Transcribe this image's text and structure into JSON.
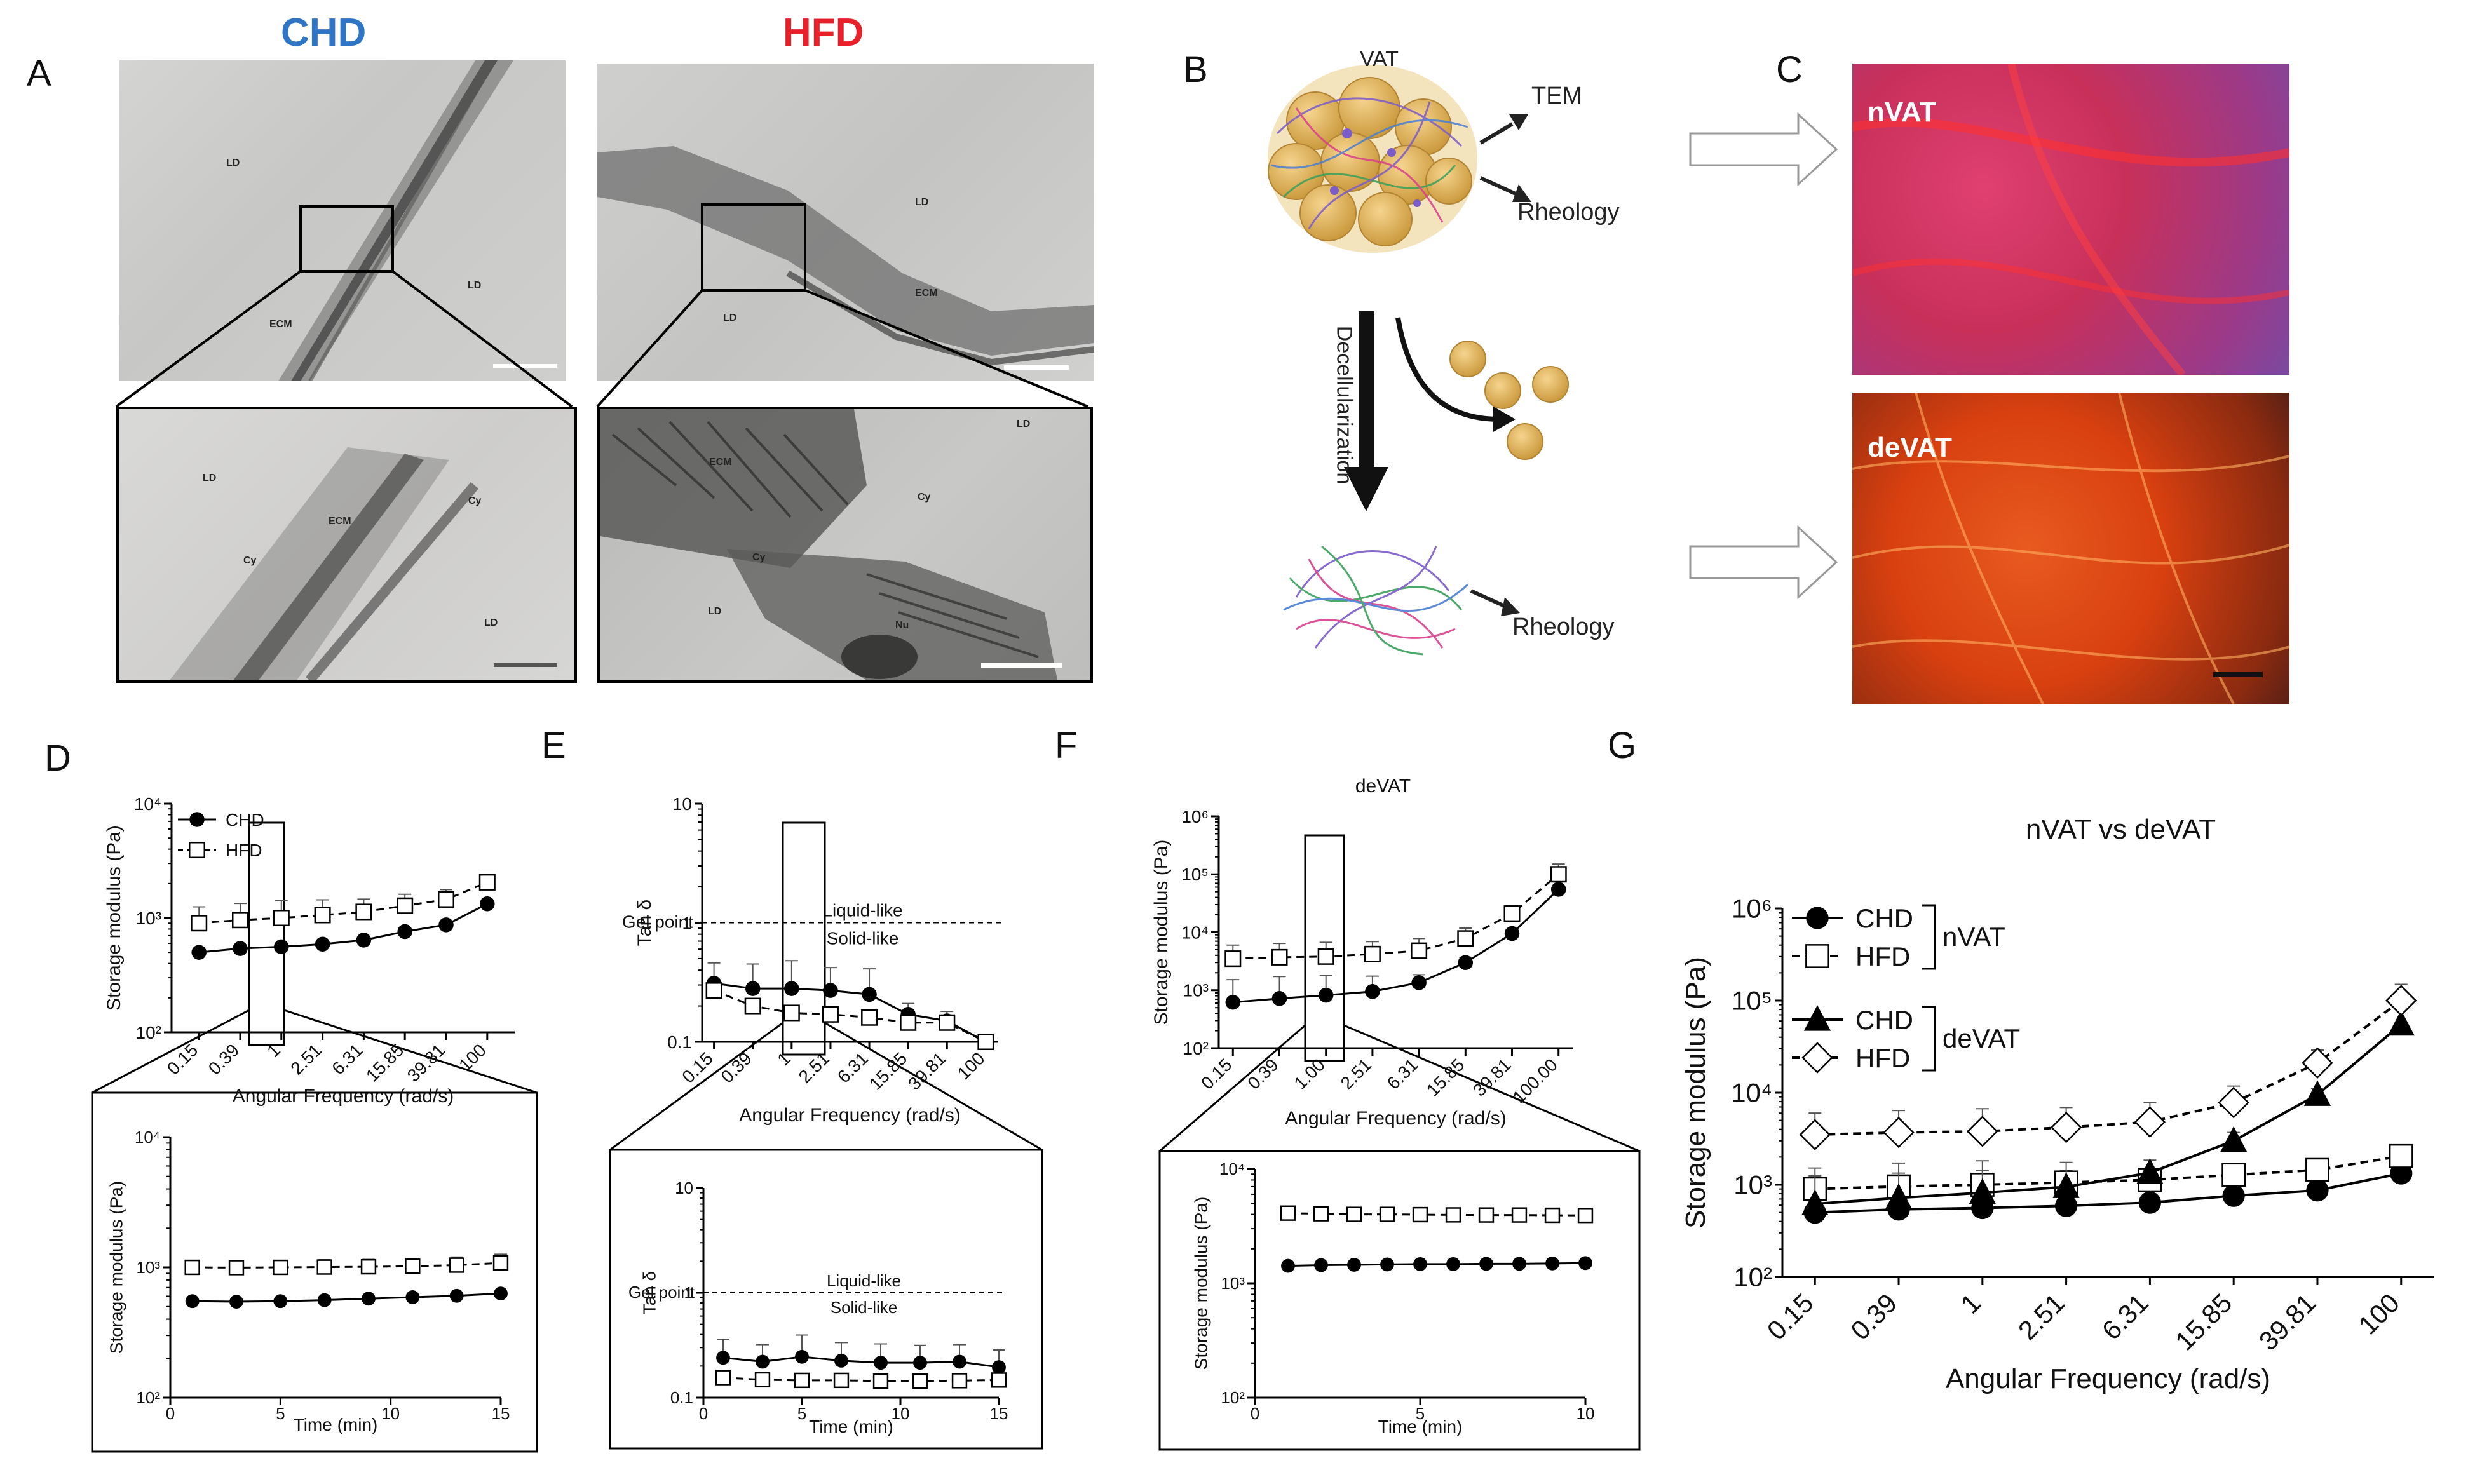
{
  "panels": {
    "A": "A",
    "B": "B",
    "C": "C",
    "D": "D",
    "E": "E",
    "F": "F",
    "G": "G"
  },
  "panel_a": {
    "chd_title": "CHD",
    "hfd_title": "HFD",
    "chd_title_color": "#2e75c6",
    "hfd_title_color": "#e8202a",
    "labels": {
      "ld": "LD",
      "ecm": "ECM",
      "cy": "Cy",
      "nu": "Nu"
    }
  },
  "panel_b": {
    "vat": "VAT",
    "tem": "TEM",
    "rheology_top": "Rheology",
    "decellularization": "Decellularization",
    "rheology_bottom": "Rheology"
  },
  "panel_c": {
    "nvat": "nVAT",
    "devat": "deVAT"
  },
  "chart_data": [
    {
      "id": "D-main",
      "type": "line",
      "title": "",
      "xlabel": "Angular Frequency (rad/s)",
      "ylabel": "Storage modulus (Pa)",
      "categories": [
        "0.15",
        "0.39",
        "1",
        "2.51",
        "6.31",
        "15.85",
        "39.81",
        "100"
      ],
      "y_scale": "log",
      "ylim": [
        100,
        10000
      ],
      "y_ticks": [
        {
          "v": 100,
          "l": "10²"
        },
        {
          "v": 1000,
          "l": "10³"
        },
        {
          "v": 10000,
          "l": "10⁴"
        }
      ],
      "legend": "top-left",
      "series": [
        {
          "name": "CHD",
          "marker": "filled-circle",
          "dash": false,
          "values": [
            500,
            540,
            560,
            590,
            640,
            760,
            870,
            1330
          ],
          "errors": [
            0,
            0,
            0,
            0,
            0,
            0,
            0,
            0
          ]
        },
        {
          "name": "HFD",
          "marker": "open-square",
          "dash": true,
          "values": [
            900,
            960,
            1000,
            1060,
            1130,
            1280,
            1450,
            2050
          ],
          "errors": [
            350,
            380,
            420,
            380,
            330,
            330,
            320,
            220
          ]
        }
      ]
    },
    {
      "id": "D-inset",
      "type": "line",
      "title": "",
      "xlabel": "Time (min)",
      "ylabel": "Storage modulus (Pa)",
      "x": [
        1,
        3,
        5,
        7,
        9,
        11,
        13,
        15
      ],
      "xlim": [
        0,
        15
      ],
      "x_ticks": [
        0,
        5,
        10,
        15
      ],
      "y_scale": "log",
      "ylim": [
        100,
        10000
      ],
      "y_ticks": [
        {
          "v": 100,
          "l": "10²"
        },
        {
          "v": 1000,
          "l": "10³"
        },
        {
          "v": 10000,
          "l": "10⁴"
        }
      ],
      "series": [
        {
          "name": "CHD",
          "marker": "filled-circle",
          "dash": false,
          "values": [
            550,
            545,
            550,
            560,
            575,
            590,
            605,
            630
          ],
          "errors": [
            0,
            0,
            0,
            0,
            0,
            0,
            0,
            0
          ]
        },
        {
          "name": "HFD",
          "marker": "open-square",
          "dash": true,
          "values": [
            1000,
            995,
            1000,
            1005,
            1010,
            1020,
            1040,
            1080
          ],
          "errors": [
            130,
            130,
            130,
            140,
            140,
            150,
            160,
            180
          ]
        }
      ]
    },
    {
      "id": "E-main",
      "type": "line",
      "title": "",
      "xlabel": "Angular Frequency (rad/s)",
      "ylabel": "Tan δ",
      "categories": [
        "0.15",
        "0.39",
        "1",
        "2.51",
        "6.31",
        "15.85",
        "39.81",
        "100"
      ],
      "y_scale": "log",
      "ylim": [
        0.1,
        10
      ],
      "y_ticks": [
        {
          "v": 0.1,
          "l": "0.1"
        },
        {
          "v": 1,
          "l": "1"
        },
        {
          "v": 10,
          "l": "10"
        }
      ],
      "gel_point": {
        "value": 1,
        "label": "Gel point",
        "above": "Liquid-like",
        "below": "Solid-like"
      },
      "series": [
        {
          "name": "CHD",
          "marker": "filled-circle",
          "dash": false,
          "values": [
            0.31,
            0.28,
            0.28,
            0.27,
            0.25,
            0.17,
            0.15,
            0.1
          ],
          "errors": [
            0.15,
            0.17,
            0.2,
            0.15,
            0.16,
            0.04,
            0.03,
            0
          ]
        },
        {
          "name": "HFD",
          "marker": "open-square",
          "dash": true,
          "values": [
            0.27,
            0.2,
            0.175,
            0.17,
            0.16,
            0.145,
            0.145,
            0.1
          ],
          "errors": [
            0.02,
            0.015,
            0.012,
            0.012,
            0.01,
            0.008,
            0.008,
            0
          ]
        }
      ]
    },
    {
      "id": "E-inset",
      "type": "line",
      "title": "",
      "xlabel": "Time (min)",
      "ylabel": "Tan δ",
      "x": [
        1,
        3,
        5,
        7,
        9,
        11,
        13,
        15
      ],
      "xlim": [
        0,
        15
      ],
      "x_ticks": [
        0,
        5,
        10,
        15
      ],
      "y_scale": "log",
      "ylim": [
        0.1,
        10
      ],
      "y_ticks": [
        {
          "v": 0.1,
          "l": "0.1"
        },
        {
          "v": 1,
          "l": "1"
        },
        {
          "v": 10,
          "l": "10"
        }
      ],
      "gel_point": {
        "value": 1,
        "label": "Gel point",
        "above": "Liquid-like",
        "below": "Solid-like"
      },
      "series": [
        {
          "name": "CHD",
          "marker": "filled-circle",
          "dash": false,
          "values": [
            0.24,
            0.22,
            0.245,
            0.225,
            0.215,
            0.215,
            0.22,
            0.195
          ],
          "errors": [
            0.12,
            0.1,
            0.15,
            0.11,
            0.11,
            0.1,
            0.1,
            0.09
          ]
        },
        {
          "name": "HFD",
          "marker": "open-square",
          "dash": true,
          "values": [
            0.155,
            0.148,
            0.146,
            0.146,
            0.144,
            0.144,
            0.145,
            0.147
          ],
          "errors": [
            0.01,
            0.008,
            0.008,
            0.008,
            0.008,
            0.008,
            0.008,
            0.008
          ]
        }
      ]
    },
    {
      "id": "F-main",
      "type": "line",
      "title": "deVAT",
      "xlabel": "Angular Frequency (rad/s)",
      "ylabel": "Storage modulus (Pa)",
      "categories": [
        "0.15",
        "0.39",
        "1.00",
        "2.51",
        "6.31",
        "15.85",
        "39.81",
        "100.00"
      ],
      "y_scale": "log",
      "ylim": [
        100,
        1000000
      ],
      "y_ticks": [
        {
          "v": 100,
          "l": "10²"
        },
        {
          "v": 1000,
          "l": "10³"
        },
        {
          "v": 10000,
          "l": "10⁴"
        },
        {
          "v": 100000,
          "l": "10⁵"
        },
        {
          "v": 1000000,
          "l": "10⁶"
        }
      ],
      "series": [
        {
          "name": "CHD",
          "marker": "filled-circle",
          "dash": false,
          "values": [
            620,
            720,
            820,
            950,
            1350,
            3000,
            9500,
            55000
          ],
          "errors": [
            900,
            1000,
            1000,
            800,
            500,
            700,
            1500,
            25000
          ]
        },
        {
          "name": "HFD",
          "marker": "open-square",
          "dash": true,
          "values": [
            3500,
            3700,
            3800,
            4200,
            4800,
            7800,
            21000,
            100000
          ],
          "errors": [
            2500,
            2700,
            2900,
            2700,
            3000,
            4000,
            8000,
            50000
          ]
        }
      ]
    },
    {
      "id": "F-inset",
      "type": "line",
      "title": "",
      "xlabel": "Time (min)",
      "ylabel": "Storage modulus (Pa)",
      "x": [
        1,
        2,
        3,
        4,
        5,
        6,
        7,
        8,
        9,
        10
      ],
      "xlim": [
        0,
        10
      ],
      "x_ticks": [
        0,
        5,
        10
      ],
      "y_scale": "log",
      "ylim": [
        100,
        10000
      ],
      "y_ticks": [
        {
          "v": 100,
          "l": "10²"
        },
        {
          "v": 1000,
          "l": "10³"
        },
        {
          "v": 10000,
          "l": "10⁴"
        }
      ],
      "series": [
        {
          "name": "CHD",
          "marker": "filled-circle",
          "dash": false,
          "values": [
            1420,
            1440,
            1450,
            1460,
            1470,
            1470,
            1480,
            1480,
            1490,
            1500
          ],
          "errors": [
            0,
            0,
            0,
            0,
            0,
            0,
            0,
            0,
            0,
            0
          ]
        },
        {
          "name": "HFD",
          "marker": "open-square",
          "dash": true,
          "values": [
            4100,
            4050,
            4000,
            4000,
            3980,
            3960,
            3950,
            3950,
            3930,
            3920
          ],
          "errors": [
            500,
            450,
            450,
            450,
            450,
            430,
            430,
            430,
            420,
            420
          ]
        }
      ]
    },
    {
      "id": "G",
      "type": "line",
      "title": "nVAT vs deVAT",
      "xlabel": "Angular Frequency (rad/s)",
      "ylabel": "Storage modulus (Pa)",
      "categories": [
        "0.15",
        "0.39",
        "1",
        "2.51",
        "6.31",
        "15.85",
        "39.81",
        "100"
      ],
      "y_scale": "log",
      "ylim": [
        100,
        1000000
      ],
      "y_ticks": [
        {
          "v": 100,
          "l": "10²"
        },
        {
          "v": 1000,
          "l": "10³"
        },
        {
          "v": 10000,
          "l": "10⁴"
        },
        {
          "v": 100000,
          "l": "10⁵"
        },
        {
          "v": 1000000,
          "l": "10⁶"
        }
      ],
      "legend": "top-left",
      "legend_groups": [
        {
          "label": "nVAT"
        },
        {
          "label": "deVAT"
        }
      ],
      "series": [
        {
          "name": "CHD",
          "group": "nVAT",
          "marker": "filled-circle",
          "dash": false,
          "values": [
            500,
            540,
            560,
            590,
            640,
            760,
            870,
            1330
          ],
          "errors": [
            0,
            0,
            0,
            0,
            0,
            0,
            0,
            0
          ]
        },
        {
          "name": "HFD",
          "group": "nVAT",
          "marker": "open-square",
          "dash": true,
          "values": [
            900,
            960,
            1000,
            1060,
            1130,
            1280,
            1450,
            2050
          ],
          "errors": [
            350,
            380,
            420,
            380,
            330,
            330,
            320,
            220
          ]
        },
        {
          "name": "CHD",
          "group": "deVAT",
          "marker": "filled-triangle",
          "dash": false,
          "values": [
            620,
            720,
            820,
            950,
            1350,
            3000,
            9500,
            55000
          ],
          "errors": [
            900,
            1000,
            1000,
            800,
            500,
            700,
            1500,
            25000
          ]
        },
        {
          "name": "HFD",
          "group": "deVAT",
          "marker": "open-diamond",
          "dash": true,
          "values": [
            3500,
            3700,
            3800,
            4200,
            4800,
            7800,
            21000,
            100000
          ],
          "errors": [
            2500,
            2700,
            2900,
            2700,
            3000,
            4000,
            8000,
            50000
          ]
        }
      ]
    }
  ]
}
